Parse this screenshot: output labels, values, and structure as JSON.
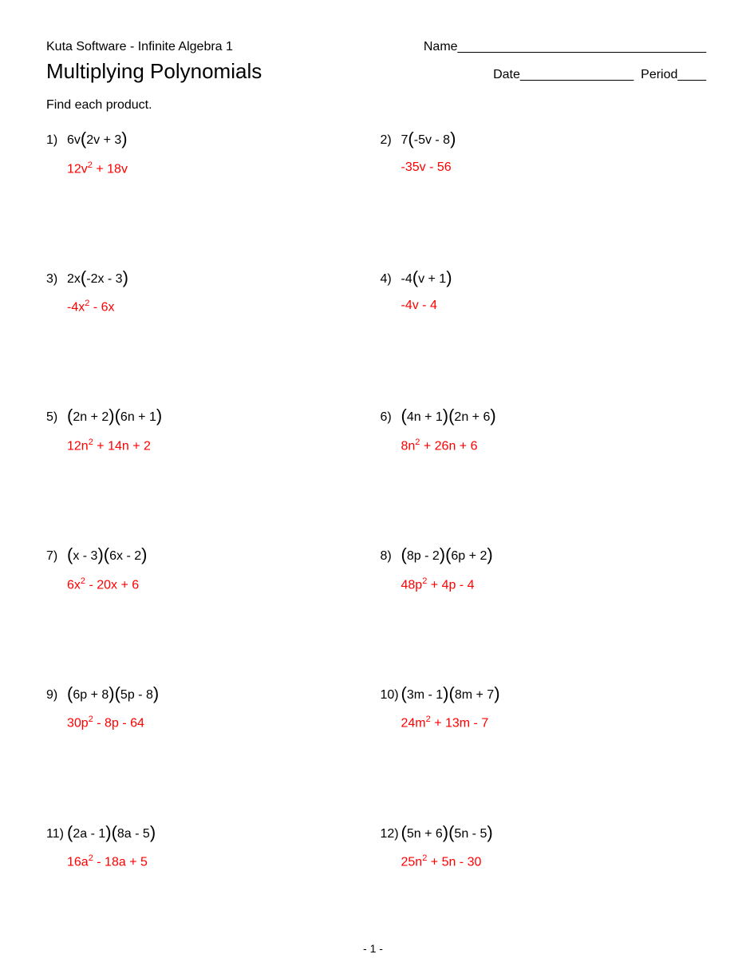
{
  "header": {
    "software": "Kuta Software - Infinite Algebra 1",
    "name_label": "Name___________________________________",
    "title": "Multiplying Polynomials",
    "date_label": "Date________________",
    "period_label": "Period____"
  },
  "instruction": "Find each product.",
  "colors": {
    "text": "#000000",
    "answer": "#ff0000",
    "background": "#ffffff"
  },
  "typography": {
    "body_fontsize": 16,
    "title_fontsize": 26,
    "exponent_fontsize": 11,
    "paren_fontsize": 22
  },
  "problems": [
    {
      "n": "1)",
      "q_pre": "6v",
      "q_in1": "2v + 3",
      "q_sep": "",
      "q_in2": "",
      "a_pre": "12v",
      "a_exp": "2",
      "a_post": " + 18v"
    },
    {
      "n": "2)",
      "q_pre": "7",
      "q_in1": "-5v - 8",
      "q_sep": "",
      "q_in2": "",
      "a_pre": "-35v - 56",
      "a_exp": "",
      "a_post": ""
    },
    {
      "n": "3)",
      "q_pre": "2x",
      "q_in1": "-2x - 3",
      "q_sep": "",
      "q_in2": "",
      "a_pre": "-4x",
      "a_exp": "2",
      "a_post": " - 6x"
    },
    {
      "n": "4)",
      "q_pre": "-4",
      "q_in1": "v + 1",
      "q_sep": "",
      "q_in2": "",
      "a_pre": "-4v - 4",
      "a_exp": "",
      "a_post": ""
    },
    {
      "n": "5)",
      "q_pre": "",
      "q_in1": "2n + 2",
      "q_sep": "",
      "q_in2": "6n + 1",
      "a_pre": "12n",
      "a_exp": "2",
      "a_post": " + 14n + 2"
    },
    {
      "n": "6)",
      "q_pre": "",
      "q_in1": "4n + 1",
      "q_sep": "",
      "q_in2": "2n + 6",
      "a_pre": "8n",
      "a_exp": "2",
      "a_post": " + 26n + 6"
    },
    {
      "n": "7)",
      "q_pre": "",
      "q_in1": "x - 3",
      "q_sep": "",
      "q_in2": "6x - 2",
      "a_pre": "6x",
      "a_exp": "2",
      "a_post": " - 20x + 6"
    },
    {
      "n": "8)",
      "q_pre": "",
      "q_in1": "8p - 2",
      "q_sep": "",
      "q_in2": "6p + 2",
      "a_pre": "48p",
      "a_exp": "2",
      "a_post": " + 4p - 4"
    },
    {
      "n": "9)",
      "q_pre": "",
      "q_in1": "6p + 8",
      "q_sep": "",
      "q_in2": "5p - 8",
      "a_pre": "30p",
      "a_exp": "2",
      "a_post": " - 8p - 64"
    },
    {
      "n": "10)",
      "q_pre": "",
      "q_in1": "3m - 1",
      "q_sep": "",
      "q_in2": "8m + 7",
      "a_pre": "24m",
      "a_exp": "2",
      "a_post": " + 13m - 7"
    },
    {
      "n": "11)",
      "q_pre": "",
      "q_in1": "2a - 1",
      "q_sep": "",
      "q_in2": "8a - 5",
      "a_pre": "16a",
      "a_exp": "2",
      "a_post": " - 18a + 5"
    },
    {
      "n": "12)",
      "q_pre": "",
      "q_in1": "5n + 6",
      "q_sep": "",
      "q_in2": "5n - 5",
      "a_pre": "25n",
      "a_exp": "2",
      "a_post": " + 5n - 30"
    }
  ],
  "footer": "- 1 -"
}
